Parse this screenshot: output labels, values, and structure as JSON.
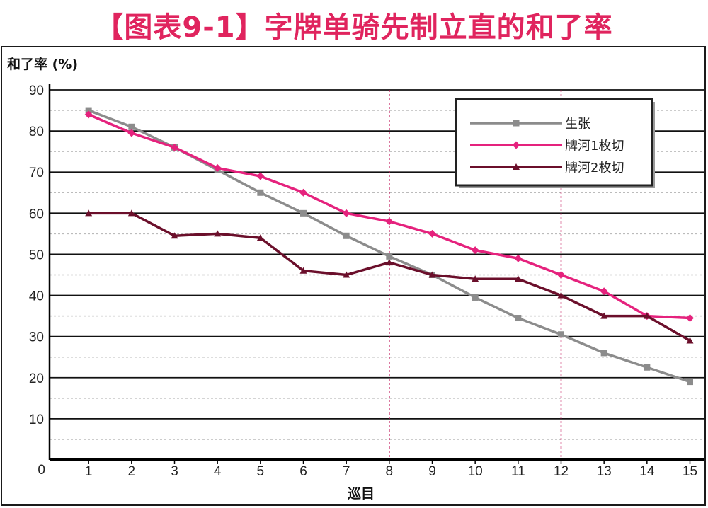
{
  "title": "【图表9-1】字牌单骑先制立直的和了率",
  "colors": {
    "title": "#e0245e",
    "frame": "#1a1a1a",
    "grid_major": "#111111",
    "grid_minor": "#bbbbbb",
    "vline": "#c2185b"
  },
  "chart_data": {
    "type": "line",
    "ylabel": "和了率 (%)",
    "xlabel": "巡目",
    "origin_label": "0",
    "x": [
      1,
      2,
      3,
      4,
      5,
      6,
      7,
      8,
      9,
      10,
      11,
      12,
      13,
      14,
      15
    ],
    "xlim": [
      0,
      15
    ],
    "ylim": [
      0,
      90
    ],
    "yticks": [
      10,
      20,
      30,
      40,
      50,
      60,
      70,
      80,
      90
    ],
    "minor_yticks": [
      5,
      15,
      25,
      35,
      45,
      55,
      65,
      75,
      85
    ],
    "vertical_markers_x": [
      8,
      12
    ],
    "grid": true,
    "legend_position": "top-right",
    "series": [
      {
        "name": "生张",
        "color": "#8c8c8c",
        "marker": "square",
        "values": [
          85,
          81,
          76,
          70.5,
          65,
          60,
          54.5,
          49.5,
          45,
          39.5,
          34.5,
          30.5,
          26,
          22.5,
          19
        ]
      },
      {
        "name": "牌河1枚切",
        "color": "#e5227d",
        "marker": "diamond",
        "values": [
          84,
          79.5,
          76,
          71,
          69,
          65,
          60,
          58,
          55,
          51,
          49,
          45,
          41,
          35,
          34.5
        ]
      },
      {
        "name": "牌河2枚切",
        "color": "#6b0f2b",
        "marker": "triangle",
        "values": [
          60,
          60,
          54.5,
          55,
          54,
          46,
          45,
          48,
          45,
          44,
          44,
          40,
          35,
          35,
          29
        ]
      }
    ]
  }
}
